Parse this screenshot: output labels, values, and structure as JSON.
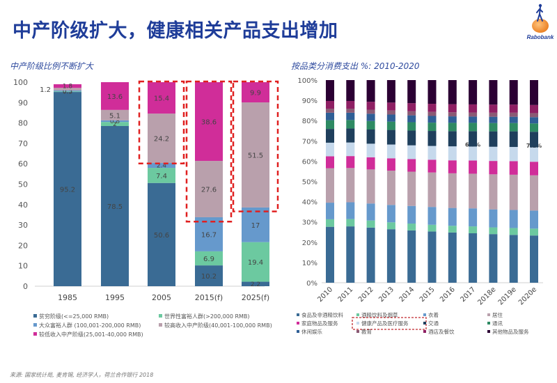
{
  "header": {
    "title": "中产阶级扩大，健康相关产品支出增加",
    "logo_text": "Rabobank"
  },
  "source": "来源: 国家统计局, 麦肯锡, 经济学人，荷兰合作银行 2018",
  "chart_data": [
    {
      "type": "bar",
      "stacked": true,
      "title": "中产阶级比例不断扩大",
      "xlabel": "",
      "ylabel": "",
      "ylim": [
        0,
        100
      ],
      "yticks": [
        0,
        10,
        20,
        30,
        40,
        50,
        60,
        70,
        80,
        90,
        100
      ],
      "categories": [
        "1985",
        "1995",
        "2005",
        "2015(f)",
        "2025(f)"
      ],
      "highlighted_categories": [
        "2005",
        "2015(f)",
        "2025(f)"
      ],
      "legend_position": "bottom",
      "series": [
        {
          "name": "贫穷阶级(<=25,000 RMB)",
          "color": "#3a6b94",
          "values": [
            95.2,
            78.5,
            50.6,
            10.2,
            2.2
          ],
          "labels": [
            "95.2",
            "78.5",
            "50.6",
            "10.2",
            "2.2"
          ]
        },
        {
          "name": "世界性富裕人群(>200,000 RMB)",
          "color": "#6cc9a0",
          "values": [
            0.3,
            2.0,
            7.4,
            6.9,
            19.4
          ],
          "labels": [
            "0.3",
            "2",
            "7.4",
            "6.9",
            "19.4"
          ]
        },
        {
          "name": "大众富裕人群 (100,001-200,000 RMB)",
          "color": "#6699cc",
          "values": [
            0.5,
            0.8,
            2.4,
            16.7,
            17.0
          ],
          "labels": [
            "0.5",
            "0.8",
            "2.4",
            "16.7",
            "17"
          ]
        },
        {
          "name": "较高收入中产阶级(40,001-100,000 RMB)",
          "color": "#b9a0ac",
          "values": [
            1.2,
            5.1,
            24.2,
            27.6,
            51.5
          ],
          "labels": [
            "1.2",
            "5.1",
            "24.2",
            "27.6",
            "51.5"
          ]
        },
        {
          "name": "较低收入中产阶级(25,001-40,000 RMB)",
          "color": "#d02d99",
          "values": [
            1.8,
            13.6,
            15.4,
            38.6,
            9.9
          ],
          "labels": [
            "1.8",
            "13.6",
            "15.4",
            "38.6",
            "9.9"
          ]
        }
      ],
      "legend_order": [
        0,
        1,
        2,
        3,
        4
      ]
    },
    {
      "type": "bar",
      "stacked": true,
      "title": "按品类分消费支出 %: 2010-2020",
      "xlabel": "",
      "ylabel": "",
      "ylim": [
        0,
        100
      ],
      "yticks": [
        "0%",
        "10%",
        "20%",
        "30%",
        "40%",
        "50%",
        "60%",
        "70%",
        "80%",
        "90%",
        "100%"
      ],
      "categories": [
        "2010",
        "2011",
        "2012",
        "2013",
        "2014",
        "2015",
        "2016",
        "2017",
        "2018e",
        "2019e",
        "2020e"
      ],
      "legend_position": "bottom",
      "highlighted_legend": "健康产品及医疗服务",
      "annotations": [
        {
          "category": "2017",
          "series": "健康产品及医疗服务",
          "text": "6.9%"
        },
        {
          "category": "2020e",
          "series": "健康产品及医疗服务",
          "text": "7.1%"
        }
      ],
      "series": [
        {
          "name": "食品及非酒精饮料",
          "color": "#3a6b94",
          "values": [
            27.6,
            27.8,
            27.2,
            26.4,
            25.8,
            25.3,
            24.8,
            24.4,
            24.0,
            23.6,
            23.3
          ]
        },
        {
          "name": "酒精饮料及烟草",
          "color": "#6cc9a0",
          "values": [
            3.7,
            3.6,
            3.5,
            3.4,
            3.4,
            3.3,
            3.3,
            3.4,
            3.3,
            3.4,
            3.4
          ]
        },
        {
          "name": "衣着",
          "color": "#6699cc",
          "values": [
            8.2,
            8.3,
            8.4,
            8.6,
            8.7,
            8.8,
            8.8,
            8.9,
            8.9,
            8.9,
            8.9
          ]
        },
        {
          "name": "居住",
          "color": "#b9a0ac",
          "values": [
            17.0,
            16.9,
            16.8,
            16.9,
            16.9,
            17.0,
            17.1,
            17.1,
            17.3,
            17.4,
            17.4
          ]
        },
        {
          "name": "家庭物品及服务",
          "color": "#d02d99",
          "values": [
            5.9,
            5.9,
            6.0,
            6.1,
            6.2,
            6.3,
            6.4,
            6.5,
            6.6,
            6.7,
            6.7
          ]
        },
        {
          "name": "健康产品及医疗服务",
          "color": "#c6d9ec",
          "values": [
            6.7,
            6.7,
            6.7,
            6.8,
            6.8,
            6.8,
            6.9,
            6.9,
            7.0,
            7.0,
            7.1
          ]
        },
        {
          "name": "交通",
          "color": "#1f3f5c",
          "values": [
            6.8,
            6.9,
            7.0,
            7.2,
            7.3,
            7.4,
            7.5,
            7.6,
            7.6,
            7.7,
            7.7
          ]
        },
        {
          "name": "通讯",
          "color": "#2e8a63",
          "values": [
            4.3,
            4.2,
            4.2,
            4.1,
            4.1,
            4.1,
            4.1,
            4.1,
            4.1,
            4.1,
            4.1
          ]
        },
        {
          "name": "休闲娱乐",
          "color": "#2f5f96",
          "values": [
            3.7,
            3.6,
            3.6,
            3.5,
            3.4,
            3.3,
            3.2,
            3.1,
            3.1,
            3.1,
            3.1
          ]
        },
        {
          "name": "教育",
          "color": "#8a5a74",
          "values": [
            2.0,
            2.0,
            2.0,
            2.0,
            2.0,
            2.0,
            2.0,
            2.0,
            2.0,
            2.0,
            2.0
          ]
        },
        {
          "name": "酒店及餐饮",
          "color": "#8e1f63",
          "values": [
            3.8,
            3.8,
            3.9,
            3.9,
            4.0,
            4.0,
            4.0,
            4.0,
            4.0,
            4.0,
            4.0
          ]
        },
        {
          "name": "其他物品及服务",
          "color": "#2b0033",
          "values": [
            10.3,
            10.3,
            10.7,
            11.1,
            11.4,
            11.7,
            11.9,
            12.0,
            12.1,
            12.1,
            12.3
          ]
        }
      ]
    }
  ]
}
